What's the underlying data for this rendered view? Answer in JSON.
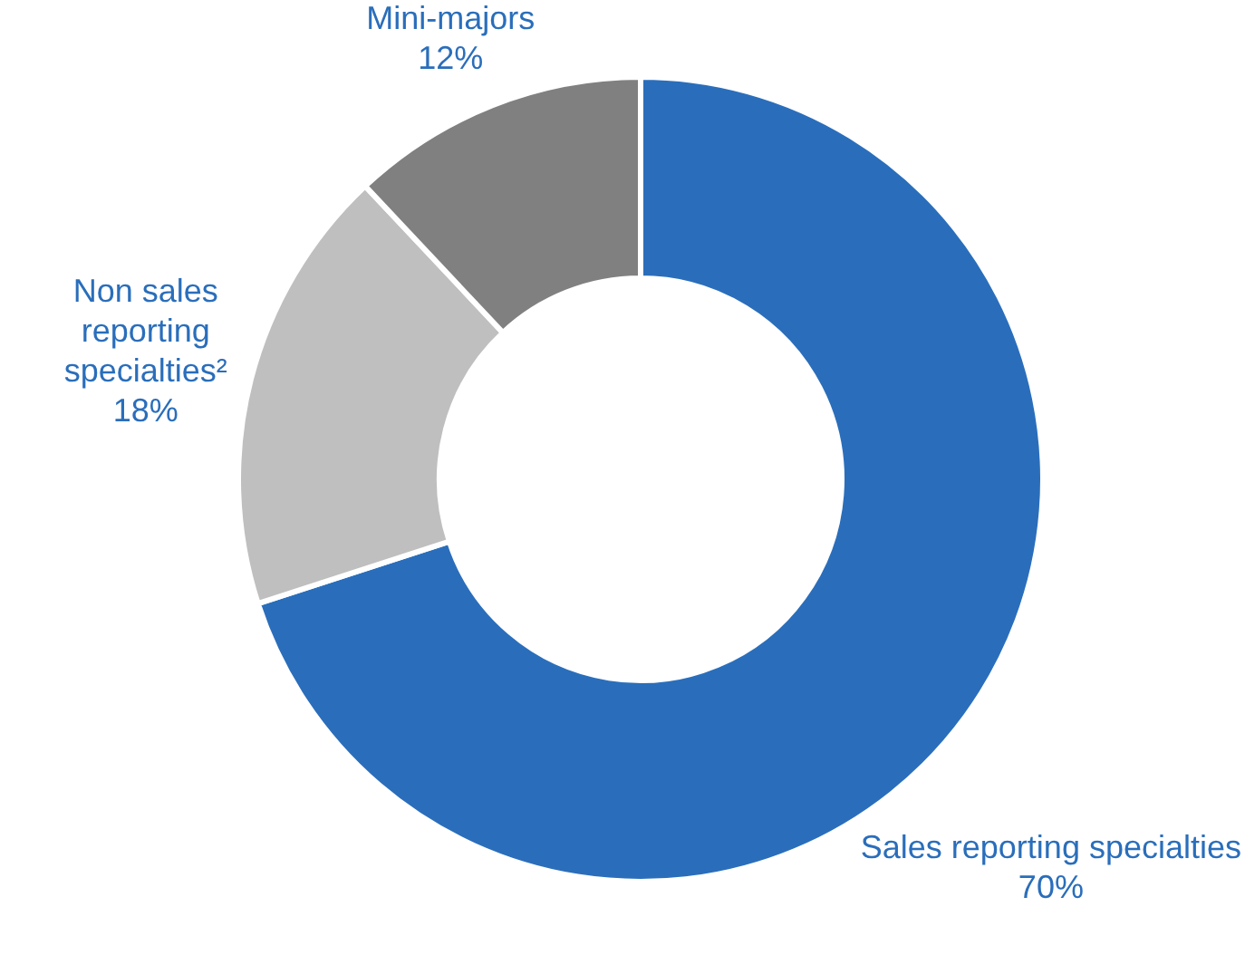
{
  "chart_data": {
    "type": "donut",
    "categories": [
      "Sales reporting specialties",
      "Non sales reporting specialties²",
      "Mini-majors"
    ],
    "values": [
      70,
      18,
      12
    ],
    "colors": [
      "#2a6ebb",
      "#bfbfbf",
      "#808080"
    ],
    "value_labels": [
      "70%",
      "18%",
      "12%"
    ],
    "legend": false
  }
}
